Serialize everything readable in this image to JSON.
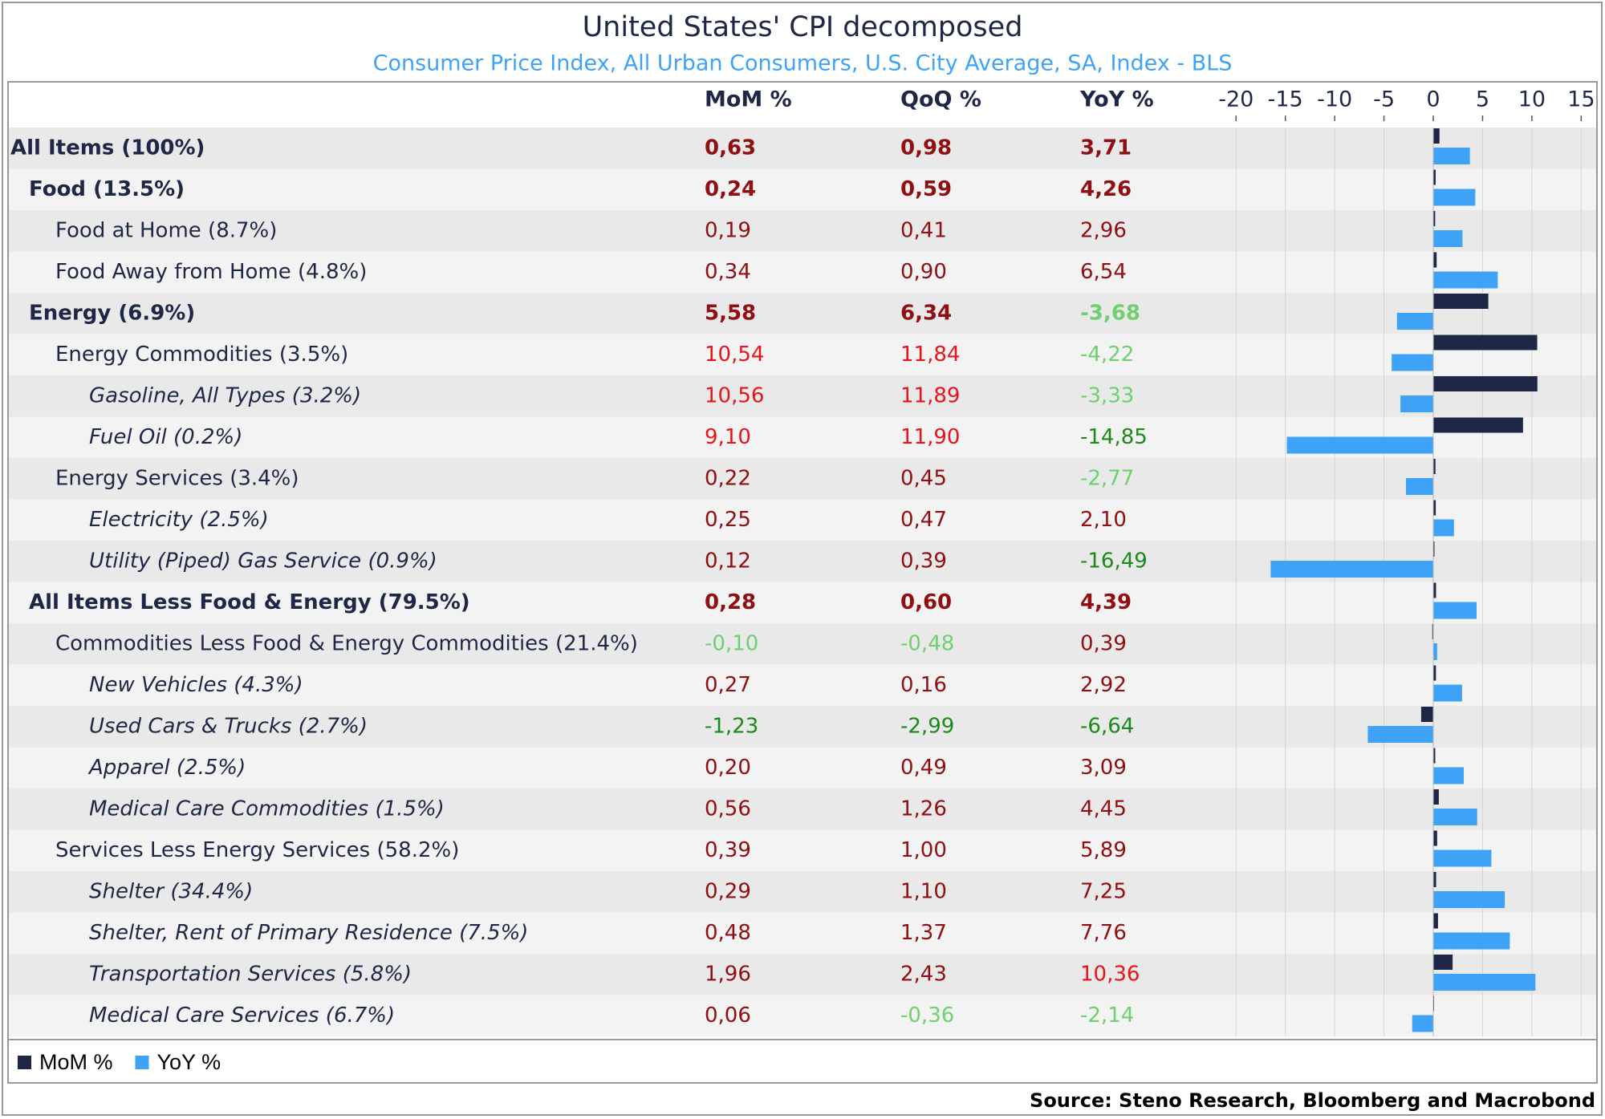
{
  "chart_data": {
    "type": "bar",
    "orientation": "horizontal",
    "title": "United States' CPI decomposed",
    "subtitle": "Consumer Price Index, All Urban Consumers, U.S. City Average, SA, Index - BLS",
    "source": "Source: Steno Research, Bloomberg and Macrobond",
    "categories": [
      "All Items (100%)",
      "Food (13.5%)",
      "Food at Home (8.7%)",
      "Food Away from Home (4.8%)",
      "Energy (6.9%)",
      "Energy Commodities (3.5%)",
      "Gasoline, All Types (3.2%)",
      "Fuel Oil (0.2%)",
      "Energy Services (3.4%)",
      "Electricity (2.5%)",
      "Utility (Piped) Gas Service (0.9%)",
      "All Items Less Food & Energy (79.5%)",
      "Commodities Less Food & Energy Commodities (21.4%)",
      "New Vehicles (4.3%)",
      "Used Cars & Trucks (2.7%)",
      "Apparel (2.5%)",
      "Medical Care Commodities (1.5%)",
      "Services Less Energy Services (58.2%)",
      "Shelter (34.4%)",
      "Shelter, Rent of Primary Residence (7.5%)",
      "Transportation Services (5.8%)",
      "Medical Care Services (6.7%)"
    ],
    "series": [
      {
        "name": "MoM %",
        "color": "#1e2745",
        "values": [
          0.63,
          0.24,
          0.19,
          0.34,
          5.58,
          10.54,
          10.56,
          9.1,
          0.22,
          0.25,
          0.12,
          0.28,
          -0.1,
          0.27,
          -1.23,
          0.2,
          0.56,
          0.39,
          0.29,
          0.48,
          1.96,
          0.06
        ],
        "value_labels": [
          "0,63",
          "0,24",
          "0,19",
          "0,34",
          "5,58",
          "10,54",
          "10,56",
          "9,10",
          "0,22",
          "0,25",
          "0,12",
          "0,28",
          "-0,10",
          "0,27",
          "-1,23",
          "0,20",
          "0,56",
          "0,39",
          "0,29",
          "0,48",
          "1,96",
          "0,06"
        ]
      },
      {
        "name": "QoQ %",
        "values": [
          0.98,
          0.59,
          0.41,
          0.9,
          6.34,
          11.84,
          11.89,
          11.9,
          0.45,
          0.47,
          0.39,
          0.6,
          -0.48,
          0.16,
          -2.99,
          0.49,
          1.26,
          1.0,
          1.1,
          1.37,
          2.43,
          -0.36
        ],
        "value_labels": [
          "0,98",
          "0,59",
          "0,41",
          "0,90",
          "6,34",
          "11,84",
          "11,89",
          "11,90",
          "0,45",
          "0,47",
          "0,39",
          "0,60",
          "-0,48",
          "0,16",
          "-2,99",
          "0,49",
          "1,26",
          "1,00",
          "1,10",
          "1,37",
          "2,43",
          "-0,36"
        ]
      },
      {
        "name": "YoY %",
        "color": "#3ea3f7",
        "values": [
          3.71,
          4.26,
          2.96,
          6.54,
          -3.68,
          -4.22,
          -3.33,
          -14.85,
          -2.77,
          2.1,
          -16.49,
          4.39,
          0.39,
          2.92,
          -6.64,
          3.09,
          4.45,
          5.89,
          7.25,
          7.76,
          10.36,
          -2.14
        ],
        "value_labels": [
          "3,71",
          "4,26",
          "2,96",
          "6,54",
          "-3,68",
          "-4,22",
          "-3,33",
          "-14,85",
          "-2,77",
          "2,10",
          "-16,49",
          "4,39",
          "0,39",
          "2,92",
          "-6,64",
          "3,09",
          "4,45",
          "5,89",
          "7,25",
          "7,76",
          "10,36",
          "-2,14"
        ]
      }
    ],
    "xlim": [
      -22.3,
      16.6
    ],
    "xticks": [
      -20,
      -15,
      -10,
      -5,
      0,
      5,
      10,
      15
    ],
    "grid": true,
    "legend": "bottom-left"
  }
}
